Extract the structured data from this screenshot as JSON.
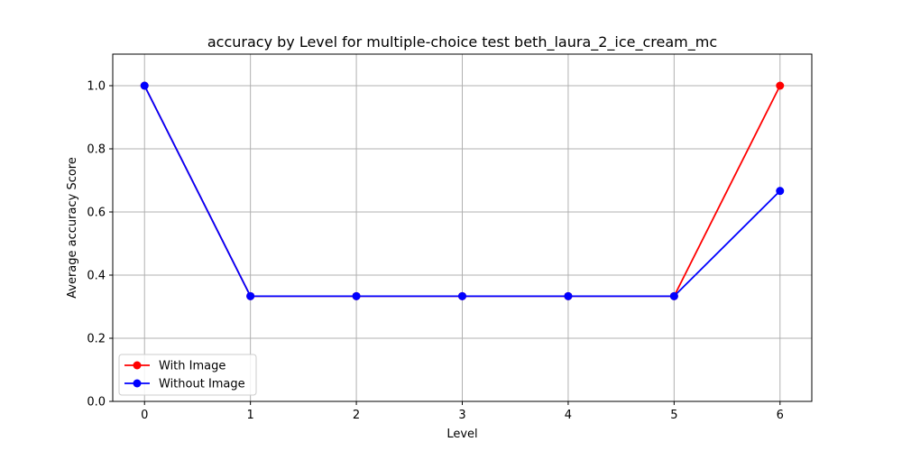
{
  "chart_data": {
    "type": "line",
    "title": "accuracy by Level for multiple-choice test beth_laura_2_ice_cream_mc",
    "xlabel": "Level",
    "ylabel": "Average accuracy Score",
    "x": [
      0,
      1,
      2,
      3,
      4,
      5,
      6
    ],
    "x_tick_labels": [
      "0",
      "1",
      "2",
      "3",
      "4",
      "5",
      "6"
    ],
    "y_ticks": [
      0.0,
      0.2,
      0.4,
      0.6,
      0.8,
      1.0
    ],
    "y_tick_labels": [
      "0.0",
      "0.2",
      "0.4",
      "0.6",
      "0.8",
      "1.0"
    ],
    "xlim": [
      -0.3,
      6.3
    ],
    "ylim": [
      0.0,
      1.1
    ],
    "grid": true,
    "legend_position": "lower-left",
    "series": [
      {
        "name": "With Image",
        "color": "#ff0000",
        "marker": "circle",
        "values": [
          1.0,
          0.3333,
          0.3333,
          0.3333,
          0.3333,
          0.3333,
          1.0
        ]
      },
      {
        "name": "Without Image",
        "color": "#0000ff",
        "marker": "circle",
        "values": [
          1.0,
          0.3333,
          0.3333,
          0.3333,
          0.3333,
          0.3333,
          0.6667
        ]
      }
    ]
  }
}
